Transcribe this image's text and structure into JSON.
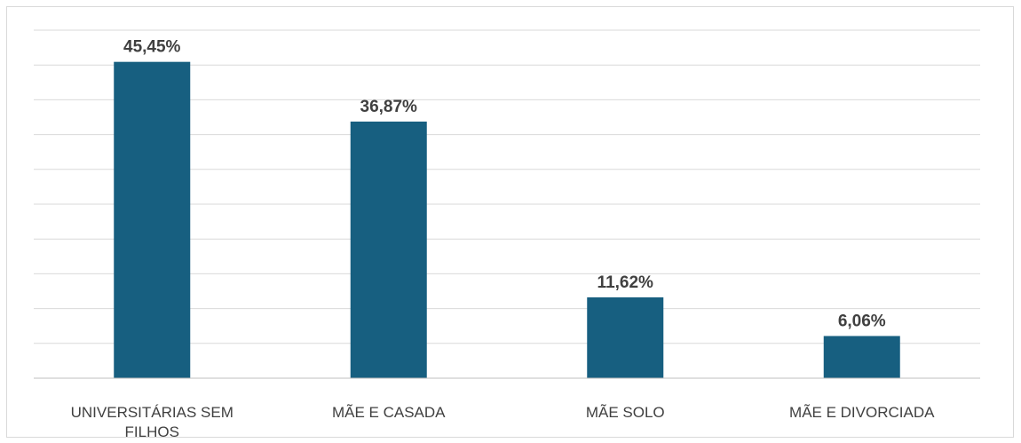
{
  "chart_data": {
    "type": "bar",
    "title": "",
    "xlabel": "",
    "ylabel": "",
    "categories": [
      "UNIVERSITÁRIAS SEM FILHOS",
      "MÃE E CASADA",
      "MÃE SOLO",
      "MÃE E DIVORCIADA"
    ],
    "category_lines": [
      [
        "UNIVERSITÁRIAS SEM",
        "FILHOS"
      ],
      [
        "MÃE E CASADA"
      ],
      [
        "MÃE SOLO"
      ],
      [
        "MÃE E DIVORCIADA"
      ]
    ],
    "values": [
      45.45,
      36.87,
      11.62,
      6.06
    ],
    "data_labels": [
      "45,45%",
      "36,87%",
      "11,62%",
      "6,06%"
    ],
    "ylim": [
      0,
      50
    ],
    "grid": true,
    "legend": "none",
    "colors": {
      "bar": "#175f80",
      "grid": "#d9d9d9",
      "axis": "#bfbfbf",
      "text": "#404040"
    }
  }
}
